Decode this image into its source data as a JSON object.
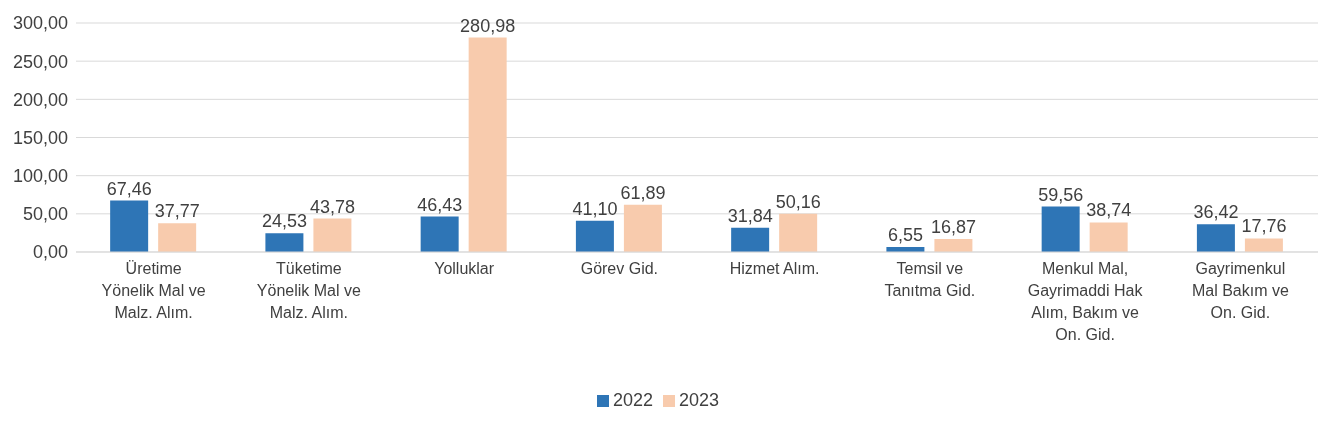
{
  "chart_data": {
    "type": "bar",
    "categories": [
      "Üretime Yönelik Mal ve Malz. Alım.",
      "Tüketime Yönelik Mal ve Malz. Alım.",
      "Yolluklar",
      "Görev Gid.",
      "Hizmet Alım.",
      "Temsil ve Tanıtma Gid.",
      "Menkul Mal, Gayrimaddi Hak Alım, Bakım ve On. Gid.",
      "Gayrimenkul Mal Bakım ve On. Gid."
    ],
    "series": [
      {
        "name": "2022",
        "color": "#2e75b6",
        "values": [
          67.46,
          24.53,
          46.43,
          41.1,
          31.84,
          6.55,
          59.56,
          36.42
        ],
        "value_labels": [
          "67,46",
          "24,53",
          "46,43",
          "41,10",
          "31,84",
          "6,55",
          "59,56",
          "36,42"
        ]
      },
      {
        "name": "2023",
        "color": "#f8cbad",
        "values": [
          37.77,
          43.78,
          280.98,
          61.89,
          50.16,
          16.87,
          38.74,
          17.76
        ],
        "value_labels": [
          "37,77",
          "43,78",
          "280,98",
          "61,89",
          "50,16",
          "16,87",
          "38,74",
          "17,76"
        ]
      }
    ],
    "ylim": [
      0,
      300
    ],
    "yticks": [
      {
        "value": 0,
        "label": "0,00"
      },
      {
        "value": 50,
        "label": "50,00"
      },
      {
        "value": 100,
        "label": "100,00"
      },
      {
        "value": 150,
        "label": "150,00"
      },
      {
        "value": 200,
        "label": "200,00"
      },
      {
        "value": 250,
        "label": "250,00"
      },
      {
        "value": 300,
        "label": "300,00"
      }
    ],
    "grid": "y",
    "legend": "bottom"
  }
}
